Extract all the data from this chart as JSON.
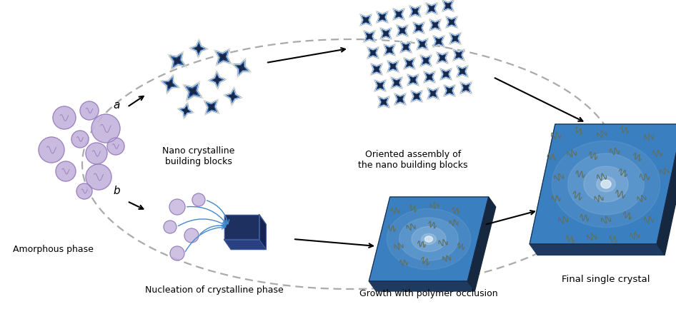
{
  "bg_color": "#ffffff",
  "amorphous_label": "Amorphous phase",
  "nano_label": "Nano crystalline\nbuilding blocks",
  "oriented_label": "Oriented assembly of\nthe nano building blocks",
  "nucleation_label": "Nucleation of crystalline phase",
  "growth_label": "Growth with polymer occlusion",
  "final_label": "Final single crystal",
  "label_a": "a",
  "label_b": "b",
  "purple": "#c4b4dc",
  "purple_dark": "#9070b8",
  "purple_line": "#a080c0",
  "blue_dark": "#192848",
  "blue_mid": "#2e62a8",
  "blue_crystal": "#3a80c0",
  "blue_light": "#88b8e8",
  "gray_dash": "#aaaaaa",
  "black": "#111111",
  "squig_color": "#607060",
  "arrow_blue": "#4488cc",
  "white": "#ffffff"
}
